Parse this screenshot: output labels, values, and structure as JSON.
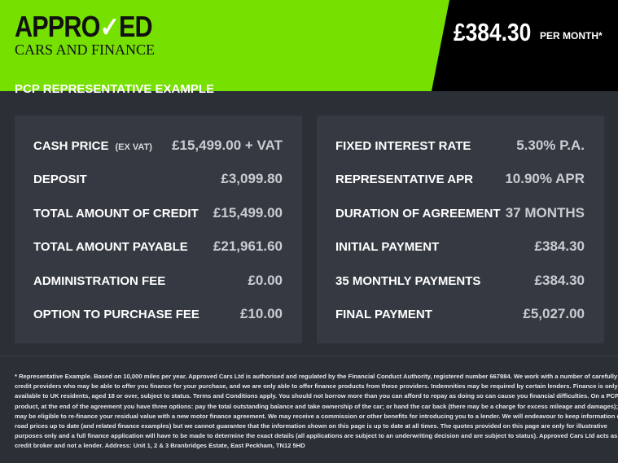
{
  "brand": {
    "logo_main_a": "APPRO",
    "logo_main_b": "ED",
    "logo_sub": "CARS AND FINANCE",
    "accent": "#76e000",
    "icon": "check-icon"
  },
  "monthly": {
    "price": "£384.30",
    "label": "PER MONTH*"
  },
  "section_title": "PCP REPRESENTATIVE EXAMPLE",
  "left": [
    {
      "label": "CASH PRICE",
      "note": "(EX VAT)",
      "value": "£15,499.00 + VAT"
    },
    {
      "label": "DEPOSIT",
      "value": "£3,099.80"
    },
    {
      "label": "TOTAL AMOUNT OF CREDIT",
      "value": "£15,499.00"
    },
    {
      "label": "TOTAL AMOUNT PAYABLE",
      "value": "£21,961.60"
    },
    {
      "label": "ADMINISTRATION FEE",
      "value": "£0.00"
    },
    {
      "label": "OPTION TO PURCHASE FEE",
      "value": "£10.00"
    }
  ],
  "right": [
    {
      "label": "FIXED INTEREST RATE",
      "value": "5.30% P.A."
    },
    {
      "label": "REPRESENTATIVE APR",
      "value": "10.90% APR"
    },
    {
      "label": "DURATION OF AGREEMENT",
      "value": "37 MONTHS"
    },
    {
      "label": "INITIAL PAYMENT",
      "value": "£384.30"
    },
    {
      "label": "35 MONTHLY PAYMENTS",
      "value": "£384.30"
    },
    {
      "label": "FINAL PAYMENT",
      "value": "£5,027.00"
    }
  ],
  "footer_lines": [
    "* Representative Example. Based on 10,000 miles per year. Approved Cars Ltd is authorised and regulated by the Financial Conduct Authority, registered number 667884. We work with a number of carefully selected",
    "credit providers who may be able to offer you finance for your purchase, and we are only able to offer finance products from these providers. Indemnities may be required by certain lenders. Finance is only",
    "available to UK residents, aged 18 or over, subject to status. Terms and Conditions apply. You should not borrow more than you can afford to repay as doing so can cause you financial difficulties. On a PCP",
    "product, at the end of the agreement you have three options: pay the total outstanding balance and take ownership of the car; or hand the car back (there may be a charge for excess mileage and damages); or you",
    "may be eligible to re-finance your residual value with a new motor finance agreement. We may receive a commission or other benefits for introducing you to a lender. We will endeavour to keep information on the",
    "road prices up to date (and related finance examples) but we cannot guarantee that the information shown on this page is up to date at all times. The quotes provided on this page are only for illustrative",
    "purposes only and a full finance application will have to be made to determine the exact details (all applications are subject to an underwriting decision and are subject to status). Approved Cars Ltd acts as a",
    "credit broker and not a lender. Address: Unit 1, 2 & 3 Branbridges Estate, East Peckham, TN12 5HD"
  ]
}
